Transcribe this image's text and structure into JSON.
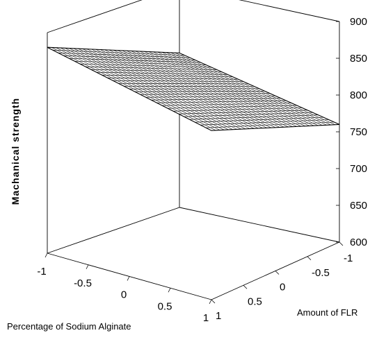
{
  "chart_data": {
    "type": "surface",
    "title": "",
    "zlabel": "Machanical strength",
    "xlabel": "Percentage of Sodium Alginate",
    "ylabel": "Amount of FLR",
    "x_ticks": [
      "-1",
      "-0.5",
      "0",
      "0.5",
      "1"
    ],
    "y_ticks": [
      "-1",
      "-0.5",
      "0",
      "0.5",
      "1"
    ],
    "z_ticks": [
      "600",
      "650",
      "700",
      "750",
      "800",
      "850",
      "900"
    ],
    "xlim": [
      -1,
      1
    ],
    "ylim": [
      -1,
      1
    ],
    "zlim": [
      600,
      900
    ],
    "surface": {
      "x": [
        -1,
        1
      ],
      "y": [
        -1,
        1
      ],
      "z": [
        [
          880,
          810
        ],
        [
          830,
          760
        ]
      ]
    },
    "corner_values": [
      {
        "x": -1,
        "y": -1,
        "z": 880
      },
      {
        "x": 1,
        "y": -1,
        "z": 830
      },
      {
        "x": -1,
        "y": 1,
        "z": 810
      },
      {
        "x": 1,
        "y": 1,
        "z": 760
      }
    ],
    "grid": true,
    "mesh_color": "#000000"
  }
}
